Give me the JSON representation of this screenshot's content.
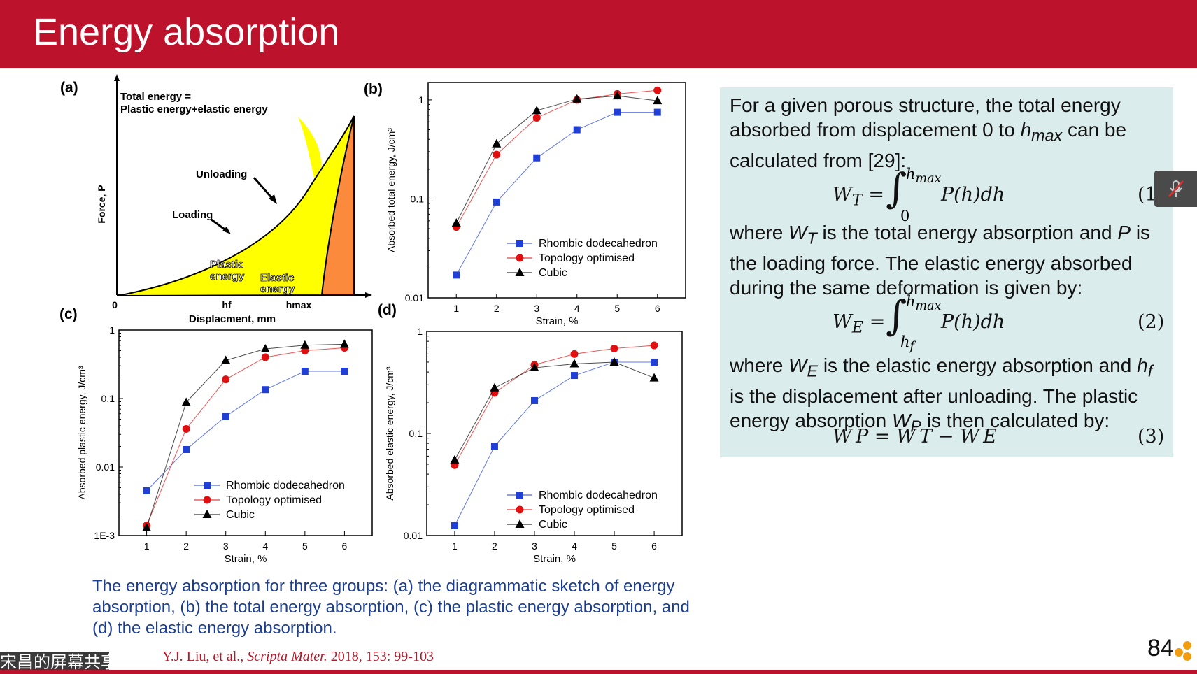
{
  "slide": {
    "title": "Energy absorption",
    "page_number": "84",
    "overlay_label": "宋昌的屏幕共享",
    "caption": "The energy absorption for three groups: (a) the diagrammatic sketch of energy absorption, (b) the total energy absorption, (c) the plastic energy absorption, and (d) the elastic energy absorption.",
    "citation_authors": "Y.J. Liu, et al.,",
    "citation_journal": "Scripta Mater.",
    "citation_rest": "2018, 153: 99-103",
    "colors": {
      "header": "#bd122c",
      "caption": "#1d3e8f",
      "box": "#dbecec",
      "rhombic": "#1f3fd6",
      "topology": "#e01010",
      "cubic": "#000000"
    }
  },
  "sketch": {
    "label": "(a)",
    "annotation_line1": "Total energy =",
    "annotation_line2": "Plastic energy+elastic energy",
    "unloading": "Unloading",
    "loading": "Loading",
    "plastic_1": "Plastic",
    "plastic_2": "energy",
    "elastic_1": "Elastic",
    "elastic_2": "energy",
    "ylabel": "Force, P",
    "xlabel": "Displacment, mm",
    "origin": "0",
    "hf": "hf",
    "hmax": "hmax"
  },
  "chart_data": [
    {
      "type": "line",
      "label": "(b)",
      "xlabel": "Strain, %",
      "ylabel": "Absorbed total energy, J/cm³",
      "yscale": "log",
      "ylim": [
        0.01,
        1.5
      ],
      "yticks": [
        "0.01",
        "0.1",
        "1"
      ],
      "x": [
        1,
        2,
        3,
        4,
        5,
        6
      ],
      "series": [
        {
          "name": "Rhombic dodecahedron",
          "values": [
            0.017,
            0.093,
            0.26,
            0.5,
            0.75,
            0.75
          ]
        },
        {
          "name": "Topology optimised",
          "values": [
            0.052,
            0.28,
            0.66,
            1.0,
            1.15,
            1.25
          ]
        },
        {
          "name": "Cubic",
          "values": [
            0.057,
            0.36,
            0.78,
            1.02,
            1.1,
            0.98
          ]
        }
      ]
    },
    {
      "type": "line",
      "label": "(c)",
      "xlabel": "Strain, %",
      "ylabel": "Absorbed plastic energy,  J/cm³",
      "yscale": "log",
      "ylim": [
        0.001,
        1
      ],
      "yticks": [
        "1E-3",
        "0.01",
        "0.1",
        "1"
      ],
      "x": [
        1,
        2,
        3,
        4,
        5,
        6
      ],
      "series": [
        {
          "name": "Rhombic dodecahedron",
          "values": [
            0.0045,
            0.018,
            0.055,
            0.135,
            0.25,
            0.25
          ]
        },
        {
          "name": "Topology optimised",
          "values": [
            0.0014,
            0.036,
            0.19,
            0.4,
            0.5,
            0.55
          ]
        },
        {
          "name": "Cubic",
          "values": [
            0.0013,
            0.088,
            0.36,
            0.53,
            0.6,
            0.62
          ]
        }
      ]
    },
    {
      "type": "line",
      "label": "(d)",
      "xlabel": "Strain, %",
      "ylabel": "Absorbed elastic energy, J/cm³",
      "yscale": "log",
      "ylim": [
        0.01,
        1
      ],
      "yticks": [
        "0.01",
        "0.1",
        "1"
      ],
      "x": [
        1,
        2,
        3,
        4,
        5,
        6
      ],
      "series": [
        {
          "name": "Rhombic dodecahedron",
          "values": [
            0.0125,
            0.075,
            0.21,
            0.37,
            0.5,
            0.5
          ]
        },
        {
          "name": "Topology optimised",
          "values": [
            0.049,
            0.25,
            0.47,
            0.6,
            0.68,
            0.73
          ]
        },
        {
          "name": "Cubic",
          "values": [
            0.055,
            0.28,
            0.44,
            0.48,
            0.5,
            0.35
          ]
        }
      ]
    }
  ],
  "formulas": {
    "para1_a": "For a given porous structure, the total energy absorbed from displacement 0 to ",
    "para1_var": "h",
    "para1_sub": "max",
    "para1_b": " can be calculated from [29]:",
    "eq1_lhs": "W",
    "eq1_lhs_sub": "T",
    "eq1_upper": "h",
    "eq1_upper_sub": "max",
    "eq1_lower": "0",
    "eq1_body": "P(h)dh",
    "eq1_num": "(1",
    "para2_a": "where ",
    "para2_w": "W",
    "para2_wsub": "T",
    "para2_b": " is the total energy absorption and ",
    "para2_p": "P",
    "para2_c": " is the loading force. The elastic energy absorbed during the same deformation is given by:",
    "eq2_lhs": "W",
    "eq2_lhs_sub": "E",
    "eq2_upper": "h",
    "eq2_upper_sub": "max",
    "eq2_lower": "h",
    "eq2_lower_sub": "f",
    "eq2_body": "P(h)dh",
    "eq2_num": "(2)",
    "para3_a": "where ",
    "para3_w": "W",
    "para3_wsub": "E",
    "para3_b": " is the elastic energy absorption and ",
    "para3_h": "h",
    "para3_hsub": "f",
    "para3_c": " is the displacement after unloading. The plastic energy absorption ",
    "para3_wp": "W",
    "para3_wpsub": "P",
    "para3_d": " is then calculated by:",
    "eq3_text": "W P =  W T − W E",
    "eq3_num": "(3)"
  }
}
